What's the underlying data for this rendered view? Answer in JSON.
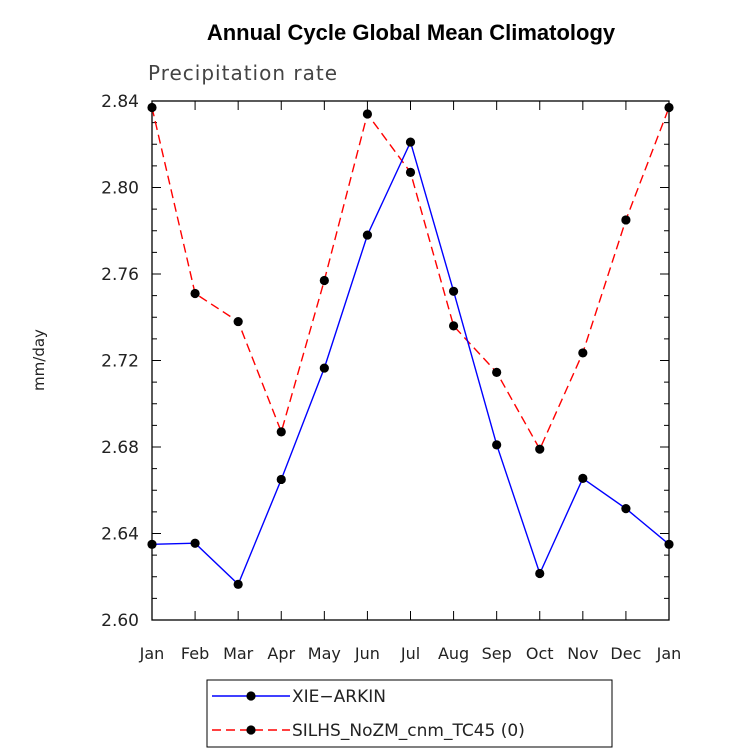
{
  "chart_data": {
    "type": "line",
    "title": "Annual Cycle Global Mean Climatology",
    "subtitle": "Precipitation rate",
    "ylabel": "mm/day",
    "xlabel": "",
    "categories": [
      "Jan",
      "Feb",
      "Mar",
      "Apr",
      "May",
      "Jun",
      "Jul",
      "Aug",
      "Sep",
      "Oct",
      "Nov",
      "Dec",
      "Jan"
    ],
    "ylim": [
      2.6,
      2.84
    ],
    "yticks": [
      "2.60",
      "2.64",
      "2.68",
      "2.72",
      "2.76",
      "2.80",
      "2.84"
    ],
    "grid": false,
    "legend_position": "bottom",
    "series": [
      {
        "name": "XIE−ARKIN",
        "color": "#0000ff",
        "dash": "solid",
        "marker": "filled-circle",
        "values": [
          2.635,
          2.6355,
          2.6165,
          2.665,
          2.7165,
          2.778,
          2.821,
          2.752,
          2.681,
          2.6215,
          2.6655,
          2.6515,
          2.635
        ]
      },
      {
        "name": "SILHS_NoZM_cnm_TC45 (0)",
        "color": "#ff0000",
        "dash": "dashed",
        "marker": "filled-circle",
        "values": [
          2.837,
          2.751,
          2.738,
          2.687,
          2.757,
          2.834,
          2.807,
          2.736,
          2.7145,
          2.679,
          2.7235,
          2.785,
          2.837
        ]
      }
    ]
  }
}
